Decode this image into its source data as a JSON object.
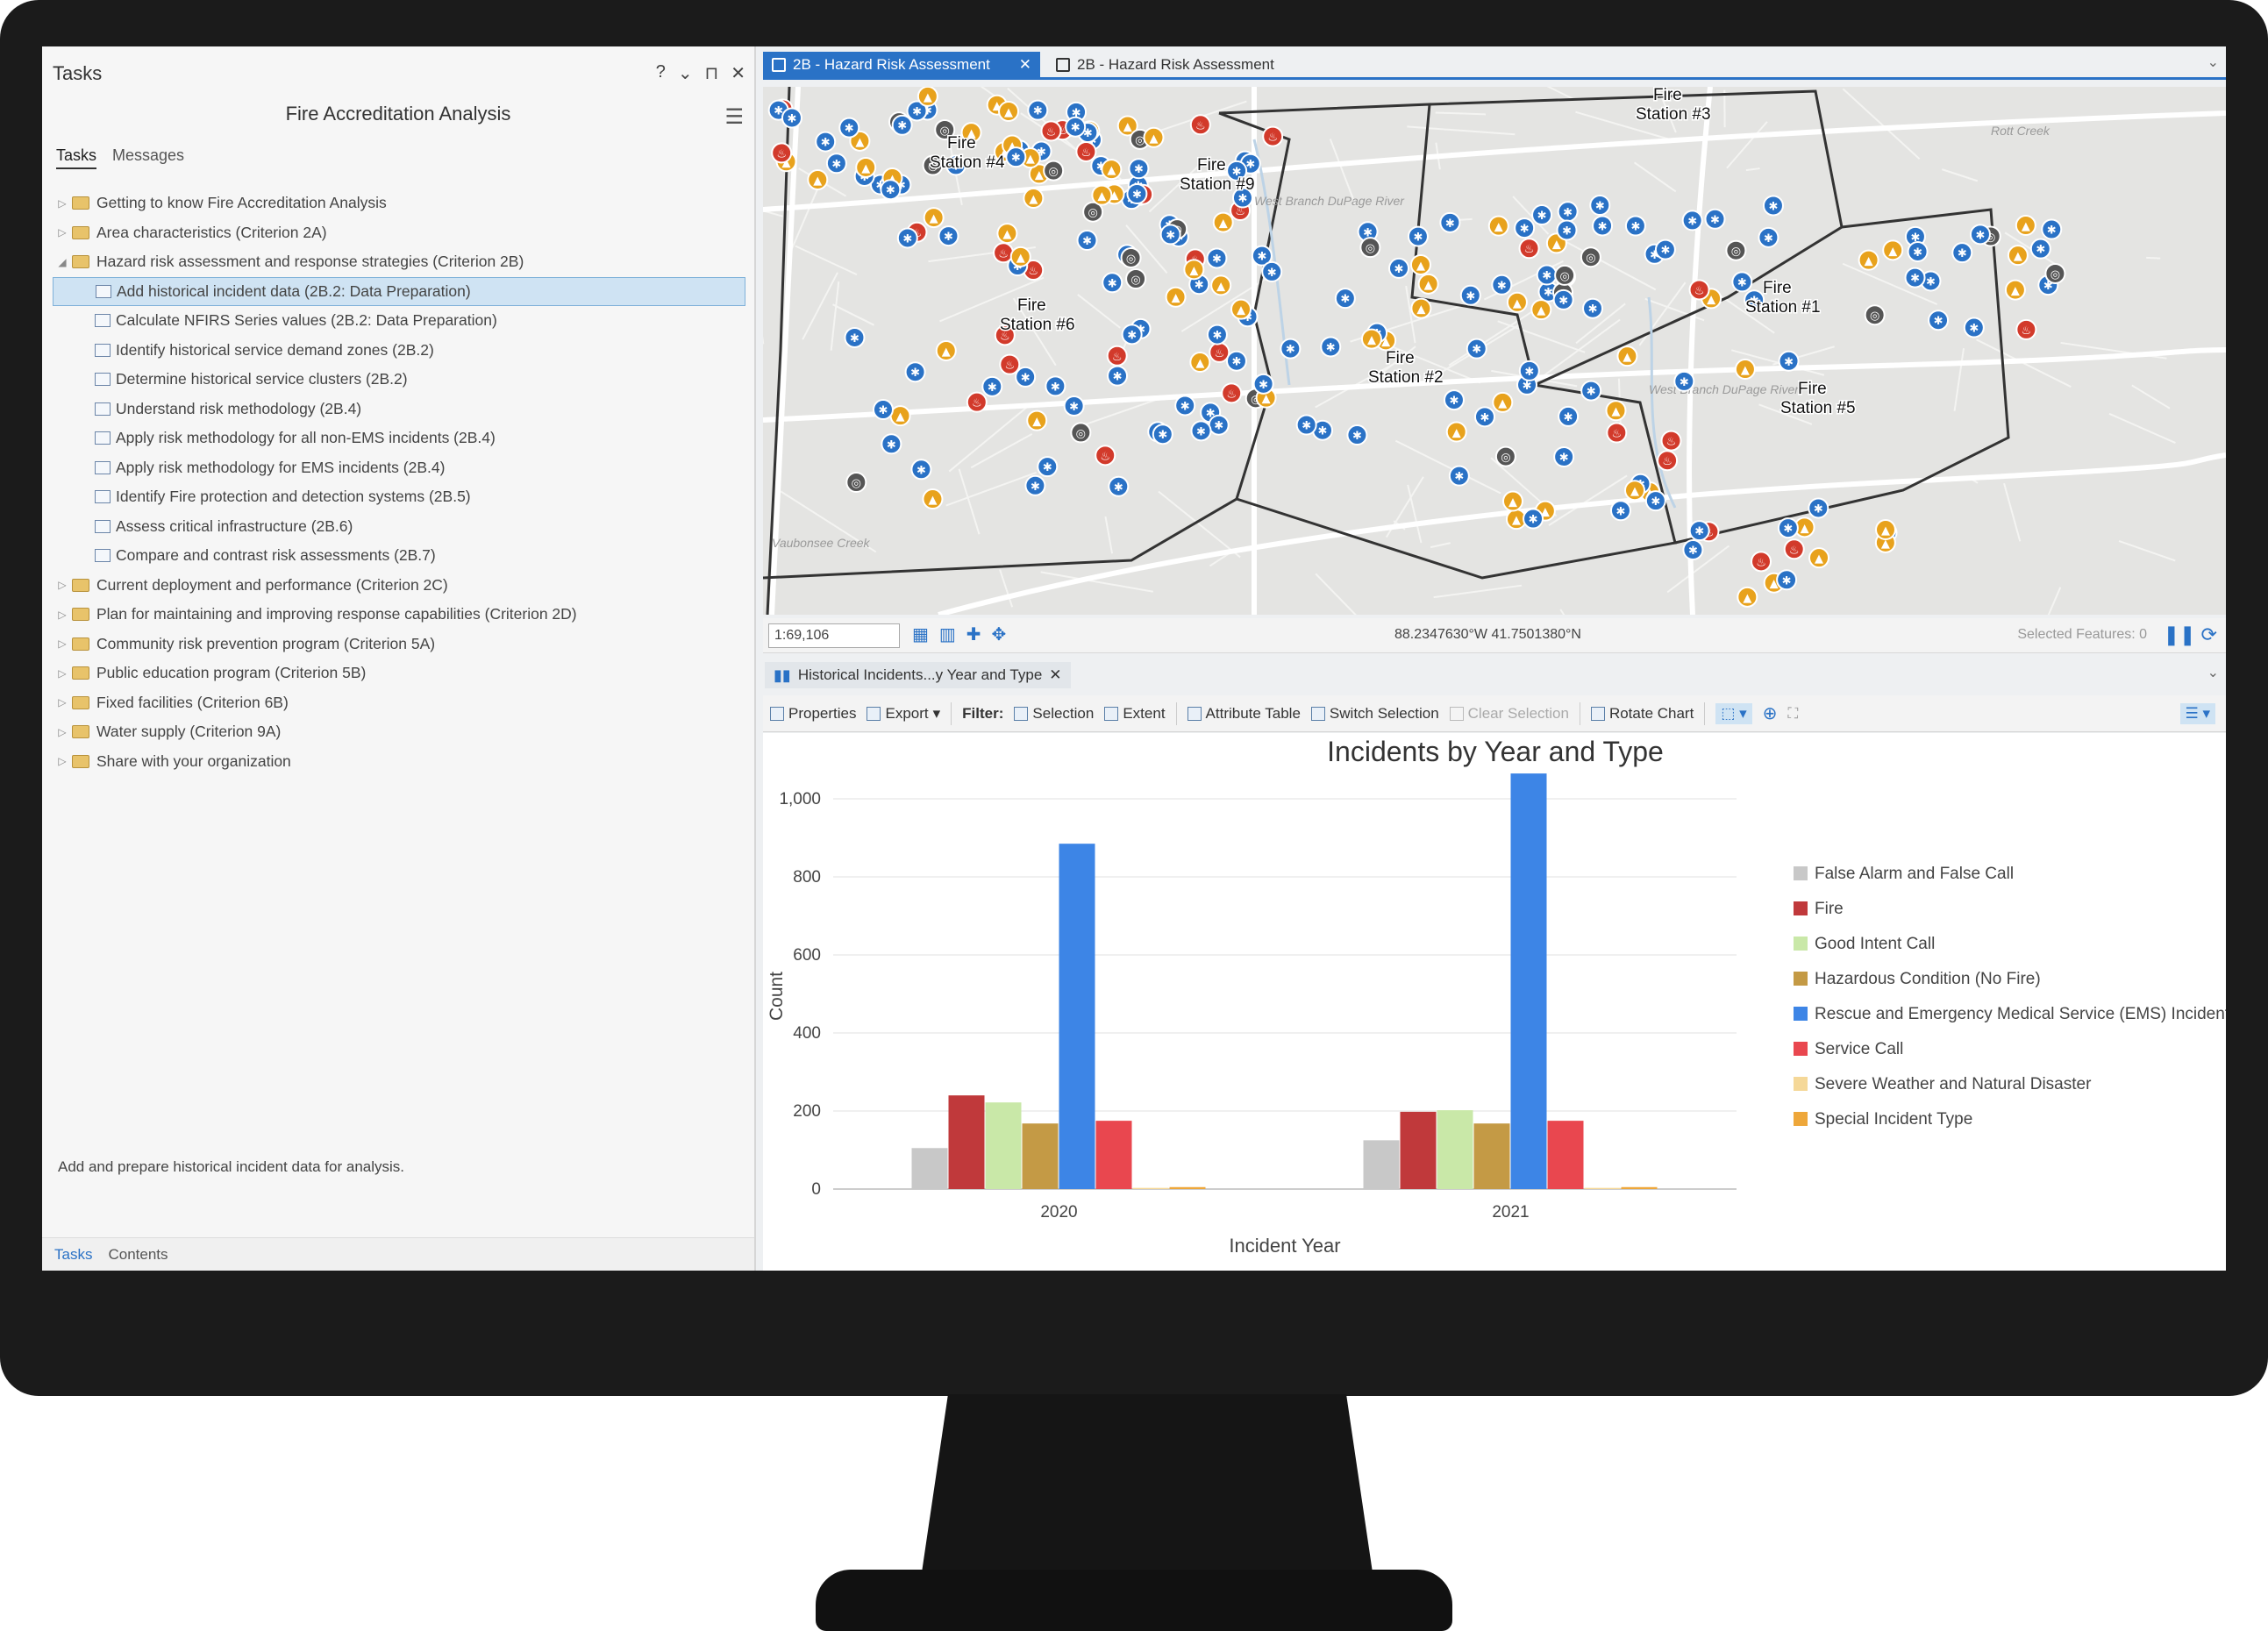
{
  "tasks_pane": {
    "title": "Tasks",
    "controls": [
      "?",
      "⌄",
      "⊓",
      "✕"
    ],
    "subtitle": "Fire Accreditation Analysis",
    "tabs": [
      "Tasks",
      "Messages"
    ],
    "tree": [
      {
        "label": "Getting to know Fire Accreditation Analysis",
        "type": "folder",
        "expanded": false
      },
      {
        "label": "Area characteristics (Criterion 2A)",
        "type": "folder",
        "expanded": false
      },
      {
        "label": "Hazard risk assessment and response strategies (Criterion 2B)",
        "type": "folder",
        "expanded": true
      },
      {
        "label": "Add historical incident data (2B.2: Data Preparation)",
        "type": "task",
        "selected": true
      },
      {
        "label": "Calculate NFIRS Series values (2B.2: Data Preparation)",
        "type": "task"
      },
      {
        "label": "Identify historical service demand zones (2B.2)",
        "type": "task"
      },
      {
        "label": "Determine historical service clusters (2B.2)",
        "type": "task"
      },
      {
        "label": "Understand risk methodology (2B.4)",
        "type": "task"
      },
      {
        "label": "Apply risk methodology for all non-EMS incidents (2B.4)",
        "type": "task"
      },
      {
        "label": "Apply risk methodology for EMS incidents (2B.4)",
        "type": "task"
      },
      {
        "label": "Identify Fire protection and detection systems  (2B.5)",
        "type": "task"
      },
      {
        "label": "Assess critical infrastructure (2B.6)",
        "type": "task"
      },
      {
        "label": "Compare and contrast risk assessments (2B.7)",
        "type": "task"
      },
      {
        "label": "Current deployment and performance (Criterion 2C)",
        "type": "folder",
        "expanded": false
      },
      {
        "label": "Plan for maintaining and improving response capabilities (Criterion 2D)",
        "type": "folder",
        "expanded": false
      },
      {
        "label": "Community risk prevention program (Criterion 5A)",
        "type": "folder",
        "expanded": false
      },
      {
        "label": "Public education program (Criterion 5B)",
        "type": "folder",
        "expanded": false
      },
      {
        "label": "Fixed facilities (Criterion 6B)",
        "type": "folder",
        "expanded": false
      },
      {
        "label": "Water supply (Criterion 9A)",
        "type": "folder",
        "expanded": false
      },
      {
        "label": "Share with your organization",
        "type": "folder",
        "expanded": false
      }
    ],
    "description": "Add and prepare historical incident data for analysis.",
    "bottom_tabs": [
      "Tasks",
      "Contents"
    ]
  },
  "map_view": {
    "tabs": [
      "2B - Hazard Risk Assessment",
      "2B - Hazard Risk Assessment"
    ],
    "station_labels": [
      {
        "line1": "Fire",
        "line2": "Station #3"
      },
      {
        "line1": "Fire",
        "line2": "Station #4"
      },
      {
        "line1": "Fire",
        "line2": "Station #9"
      },
      {
        "line1": "Fire",
        "line2": "Station #1"
      },
      {
        "line1": "Fire",
        "line2": "Station #6"
      },
      {
        "line1": "Fire",
        "line2": "Station #2"
      },
      {
        "line1": "Fire",
        "line2": "Station #5"
      }
    ],
    "place_labels": [
      "Rott Creek",
      "West Branch DuPage River",
      "West Branch DuPage River",
      "Vaubonsee Creek"
    ],
    "scale": "1:69,106",
    "coordinates": "88.2347630°W 41.7501380°N",
    "selected_features": "Selected Features: 0"
  },
  "chart_pane": {
    "tab_label": "Historical Incidents...y Year and Type",
    "toolbar": {
      "properties": "Properties",
      "export": "Export",
      "filter": "Filter:",
      "selection": "Selection",
      "extent": "Extent",
      "attribute_table": "Attribute Table",
      "switch_selection": "Switch Selection",
      "clear_selection": "Clear Selection",
      "rotate_chart": "Rotate Chart"
    }
  },
  "colors": {
    "accent": "#2a72c6",
    "ems": "#2a72c6",
    "fire": "#d23a2b",
    "hazard": "#e8a21c",
    "other": "#555555"
  },
  "chart_data": {
    "type": "bar",
    "title": "Incidents by Year and Type",
    "xlabel": "Incident Year",
    "ylabel": "Count",
    "categories": [
      "2020",
      "2021"
    ],
    "ylim": [
      0,
      1000
    ],
    "yticks": [
      0,
      200,
      400,
      600,
      800,
      1000
    ],
    "ytick_labels": [
      "0",
      "200",
      "400",
      "600",
      "800",
      "1,000"
    ],
    "grid": true,
    "legend": "right",
    "series": [
      {
        "name": "False Alarm and False Call",
        "color": "#c8c8c8",
        "values": [
          105,
          125
        ]
      },
      {
        "name": "Fire",
        "color": "#c0393b",
        "values": [
          240,
          198
        ]
      },
      {
        "name": "Good Intent Call",
        "color": "#c9e8a8",
        "values": [
          222,
          202
        ]
      },
      {
        "name": "Hazardous Condition (No Fire)",
        "color": "#c49a45",
        "values": [
          168,
          168
        ]
      },
      {
        "name": "Rescue and Emergency Medical Service (EMS) Incidents",
        "color": "#3d85e6",
        "values": [
          885,
          1065
        ]
      },
      {
        "name": "Service Call",
        "color": "#e9474f",
        "values": [
          175,
          175
        ]
      },
      {
        "name": "Severe Weather and Natural Disaster",
        "color": "#f5d898",
        "values": [
          3,
          3
        ]
      },
      {
        "name": "Special Incident Type",
        "color": "#eea73a",
        "values": [
          5,
          5
        ]
      }
    ]
  }
}
